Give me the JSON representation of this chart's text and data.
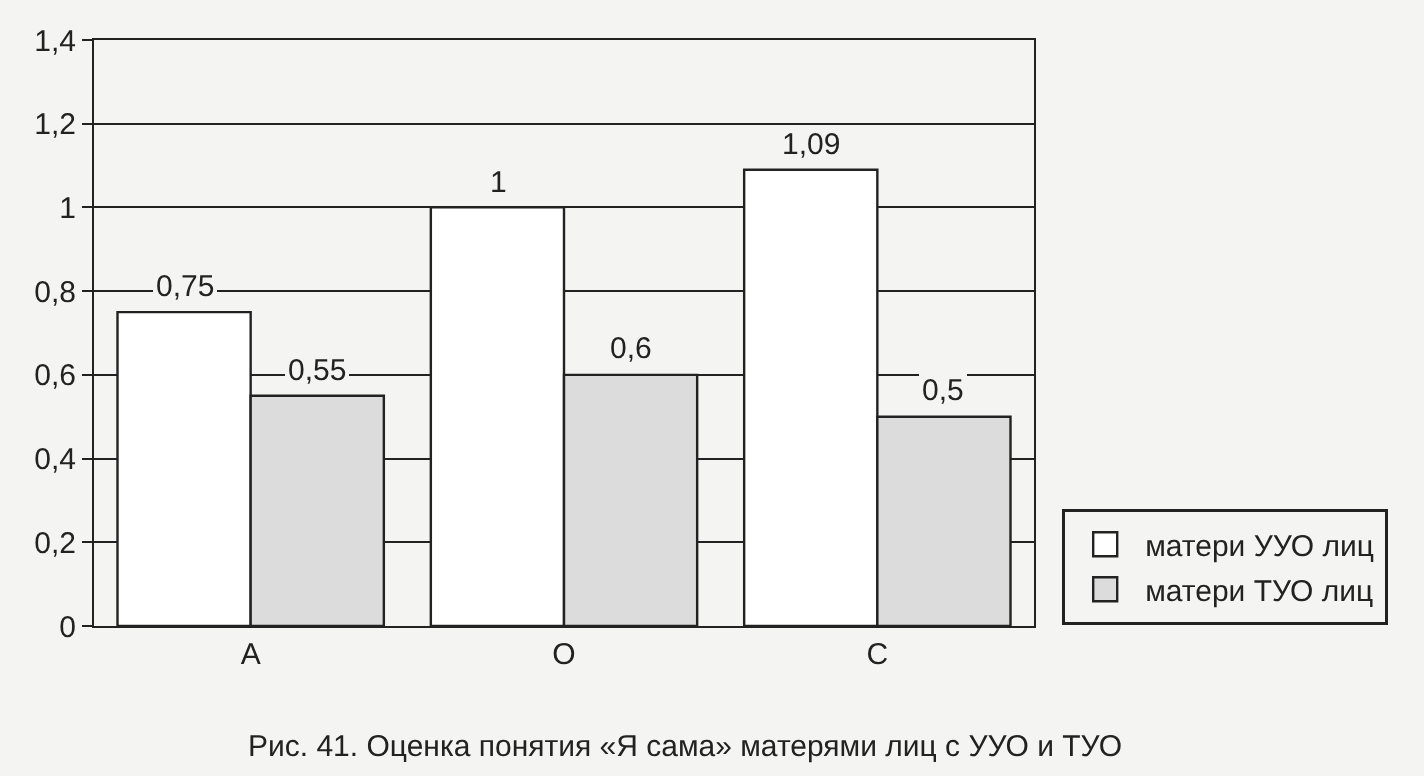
{
  "chart_data": {
    "type": "bar",
    "categories": [
      "А",
      "О",
      "С"
    ],
    "series": [
      {
        "name": "матери УУО лиц",
        "color": "#ffffff",
        "values": [
          0.75,
          1,
          1.09
        ]
      },
      {
        "name": "матери ТУО лиц",
        "color": "#dcdcdc",
        "values": [
          0.55,
          0.6,
          0.5
        ]
      }
    ],
    "ylim": [
      0,
      1.4
    ],
    "yticks": [
      {
        "value": 0,
        "label": "0"
      },
      {
        "value": 0.2,
        "label": "0,2"
      },
      {
        "value": 0.4,
        "label": "0,4"
      },
      {
        "value": 0.6,
        "label": "0,6"
      },
      {
        "value": 0.8,
        "label": "0,8"
      },
      {
        "value": 1,
        "label": "1"
      },
      {
        "value": 1.2,
        "label": "1,2"
      },
      {
        "value": 1.4,
        "label": "1,4"
      }
    ],
    "value_labels": [
      [
        "0,75",
        "1",
        "1,09"
      ],
      [
        "0,55",
        "0,6",
        "0,5"
      ]
    ],
    "grid": "y",
    "legend": "bottom right",
    "annotations": [
      "Рис. 41. Оценка понятия «Я сама» матерями лиц с УУО и ТУО"
    ]
  }
}
